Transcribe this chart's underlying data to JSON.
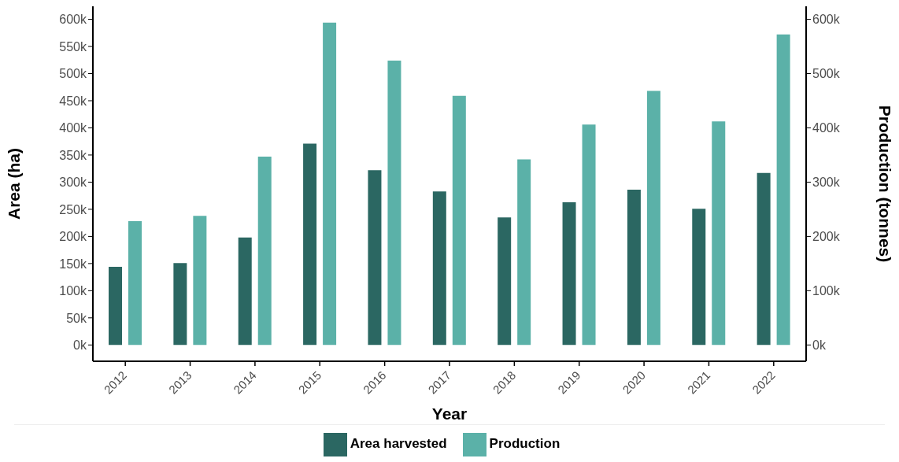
{
  "chart_data": {
    "type": "bar",
    "xlabel": "Year",
    "ylabel": "Area (ha)",
    "y2label": "Production (tonnes)",
    "categories": [
      "2012",
      "2013",
      "2014",
      "2015",
      "2016",
      "2017",
      "2018",
      "2019",
      "2020",
      "2021",
      "2022"
    ],
    "series": [
      {
        "name": "Area harvested",
        "color": "#2b6762",
        "values": [
          144000,
          151000,
          198000,
          371000,
          322000,
          283000,
          235000,
          263000,
          286000,
          251000,
          317000
        ]
      },
      {
        "name": "Production",
        "color": "#5bb1a8",
        "axis": "y2",
        "values": [
          228000,
          238000,
          347000,
          594000,
          524000,
          459000,
          342000,
          406000,
          468000,
          412000,
          572000
        ]
      }
    ],
    "ylim": [
      -30000,
      624000
    ],
    "yticks": [
      {
        "value": 0,
        "label": "0k"
      },
      {
        "value": 50000,
        "label": "50k"
      },
      {
        "value": 100000,
        "label": "100k"
      },
      {
        "value": 150000,
        "label": "150k"
      },
      {
        "value": 200000,
        "label": "200k"
      },
      {
        "value": 250000,
        "label": "250k"
      },
      {
        "value": 300000,
        "label": "300k"
      },
      {
        "value": 350000,
        "label": "350k"
      },
      {
        "value": 400000,
        "label": "400k"
      },
      {
        "value": 450000,
        "label": "450k"
      },
      {
        "value": 500000,
        "label": "500k"
      },
      {
        "value": 550000,
        "label": "550k"
      },
      {
        "value": 600000,
        "label": "600k"
      }
    ],
    "y2lim": [
      -30000,
      624000
    ],
    "y2ticks": [
      {
        "value": 0,
        "label": "0k"
      },
      {
        "value": 100000,
        "label": "100k"
      },
      {
        "value": 200000,
        "label": "200k"
      },
      {
        "value": 300000,
        "label": "300k"
      },
      {
        "value": 400000,
        "label": "400k"
      },
      {
        "value": 500000,
        "label": "500k"
      },
      {
        "value": 600000,
        "label": "600k"
      }
    ],
    "grid": false,
    "legend": "bottom"
  }
}
